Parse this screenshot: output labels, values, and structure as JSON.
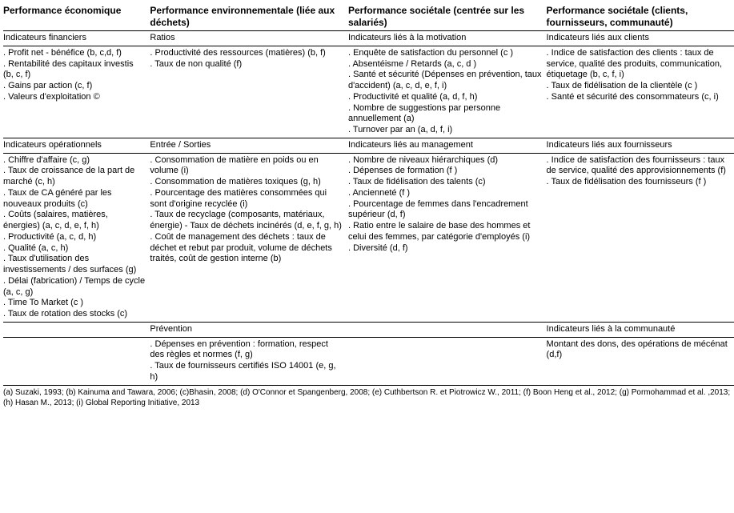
{
  "headers": {
    "col1": "Performance économique",
    "col2": "Performance environnementale (liée aux déchets)",
    "col3": "Performance sociétale (centrée sur les salariés)",
    "col4": "Performance sociétale (clients, fournisseurs, communauté)"
  },
  "row1": {
    "sub1": "Indicateurs financiers",
    "sub2": "Ratios",
    "sub3": "Indicateurs liés à la motivation",
    "sub4": "Indicateurs liés aux clients",
    "c1": ". Profit net - bénéfice (b, c,d, f)\n. Rentabilité des capitaux investis (b, c, f)\n. Gains par action (c, f)\n. Valeurs d'exploitation ©",
    "c2": ". Productivité des ressources (matières) (b, f)\n. Taux de non qualité (f)",
    "c3": ". Enquête de satisfaction du personnel (c )\n. Absentéisme / Retards (a, c, d )\n. Santé et sécurité (Dépenses en prévention, taux d'accident) (a, c, d, e, f, i)\n. Productivité et qualité (a, d, f, h)\n. Nombre de suggestions par personne annuellement (a)\n. Turnover par an (a, d, f, i)",
    "c4": ". Indice de satisfaction des clients : taux de service, qualité des produits, communication, étiquetage (b, c, f, i)\n. Taux de fidélisation de la clientèle (c )\n. Santé et sécurité des consommateurs (c, i)"
  },
  "row2": {
    "sub1": "Indicateurs opérationnels",
    "sub2": "Entrée / Sorties",
    "sub3": "Indicateurs liés au management",
    "sub4": "Indicateurs liés aux fournisseurs",
    "c1": ". Chiffre d'affaire (c, g)\n. Taux de croissance de la part de marché (c, h)\n. Taux de CA généré par les nouveaux produits (c)\n. Coûts (salaires, matières, énergies) (a, c, d, e, f, h)\n. Productivité (a, c, d, h)\n. Qualité (a, c, h)\n. Taux d'utilisation des investissements / des surfaces (g)\n. Délai (fabrication) / Temps de cycle (a, c, g)\n. Time To Market (c )\n. Taux de rotation des stocks (c)",
    "c2": ". Consommation de matière en poids ou en volume (i)\n. Consommation de matières toxiques (g, h)\n. Pourcentage des matières consommées qui sont d'origine recyclée (i)\n. Taux de recyclage (composants, matériaux, énergie) - Taux de déchets incinérés (d, e, f, g, h)\n. Coût de management des déchets : taux de déchet et rebut par produit, volume de déchets traités, coût de gestion interne (b)",
    "c3": ". Nombre de niveaux hiérarchiques (d)\n. Dépenses de formation (f )\n. Taux de fidélisation des talents (c)\n. Ancienneté (f )\n. Pourcentage de femmes dans l'encadrement supérieur (d, f)\n. Ratio entre le salaire de base des hommes et celui des femmes, par catégorie d'employés (i)\n. Diversité (d, f)",
    "c4": ". Indice de satisfaction des fournisseurs : taux de service, qualité des approvisionnements (f)\n. Taux de fidélisation des fournisseurs (f )"
  },
  "row3": {
    "sub1": "",
    "sub2": "Prévention",
    "sub3": "",
    "sub4": "Indicateurs liés à la communauté",
    "c1": "",
    "c2": ". Dépenses en prévention : formation, respect des règles et normes (f, g)\n. Taux de fournisseurs certifiés ISO 14001 (e, g, h)",
    "c3": "",
    "c4": "Montant des dons, des opérations de mécénat (d,f)"
  },
  "references": "(a) Suzaki, 1993; (b) Kainuma and Tawara, 2006; (c)Bhasin, 2008; (d) O'Connor et Spangenberg, 2008; (e) Cuthbertson R. et Piotrowicz W., 2011; (f) Boon Heng et al., 2012; (g) Pormohammad et al. ,2013; (h) Hasan M., 2013; (i) Global Reporting Initiative, 2013"
}
